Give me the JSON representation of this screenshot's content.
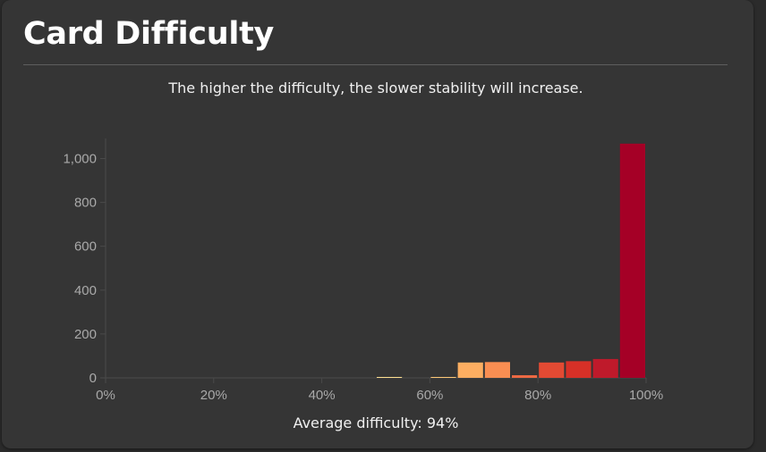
{
  "card": {
    "title": "Card Difficulty",
    "subtitle": "The higher the difficulty, the slower stability will increase.",
    "average_text": "Average difficulty: 94%"
  },
  "chart_data": {
    "type": "bar",
    "xlim": [
      0,
      100
    ],
    "ylim": [
      0,
      1080
    ],
    "x_ticks": [
      "0%",
      "20%",
      "40%",
      "60%",
      "80%",
      "100%"
    ],
    "y_ticks": [
      {
        "value": 0,
        "label": "0"
      },
      {
        "value": 200,
        "label": "200"
      },
      {
        "value": 400,
        "label": "400"
      },
      {
        "value": 600,
        "label": "600"
      },
      {
        "value": 800,
        "label": "800"
      },
      {
        "value": 1000,
        "label": "1,000"
      }
    ],
    "bins": [
      {
        "start": 50,
        "end": 55,
        "value": 1,
        "color": "#fee090"
      },
      {
        "start": 60,
        "end": 65,
        "value": 2,
        "color": "#fdc877"
      },
      {
        "start": 65,
        "end": 70,
        "value": 70,
        "color": "#fdae61"
      },
      {
        "start": 70,
        "end": 75,
        "value": 72,
        "color": "#f98e52"
      },
      {
        "start": 75,
        "end": 80,
        "value": 12,
        "color": "#ef6a43"
      },
      {
        "start": 80,
        "end": 85,
        "value": 70,
        "color": "#e34a33"
      },
      {
        "start": 85,
        "end": 90,
        "value": 76,
        "color": "#d73027"
      },
      {
        "start": 90,
        "end": 95,
        "value": 86,
        "color": "#bf1a2b"
      },
      {
        "start": 95,
        "end": 100,
        "value": 1068,
        "color": "#a50026"
      }
    ],
    "grid": false,
    "legend": "none"
  }
}
